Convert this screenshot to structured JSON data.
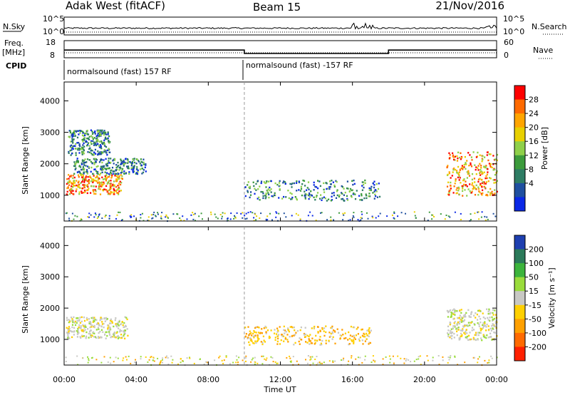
{
  "header": {
    "station": "Adak West (fitACF)",
    "beam": "Beam 15",
    "date": "21/Nov/2016"
  },
  "panels": {
    "nsky": {
      "left_label": "N.Sky",
      "left_ticks": [
        "10^5",
        "10^0"
      ],
      "right_label": "N.Search",
      "right_ticks": [
        "10^5",
        "10^0"
      ]
    },
    "freq": {
      "left_label_1": "Freq.",
      "left_label_2": "[MHz]",
      "left_ticks": [
        "18",
        "8"
      ],
      "right_label": "Nave",
      "right_ticks": [
        "60",
        "0"
      ]
    },
    "cpid": {
      "label": "CPID",
      "segments": [
        {
          "text": "normalsound (fast) 157 RF",
          "start_hour": 0
        },
        {
          "text": "normalsound (fast) -157 RF",
          "start_hour": 10
        }
      ]
    },
    "power": {
      "ylabel": "Slant Range [km]",
      "colorbar_label": "Power [dB]",
      "colorbar_ticks": [
        "28",
        "24",
        "20",
        "16",
        "12",
        "8",
        "4"
      ],
      "colorbar_colors": [
        "#ff0000",
        "#ff6a00",
        "#ffa500",
        "#e8d000",
        "#8fd04a",
        "#3c9b3c",
        "#2e7d64",
        "#1f4fa0",
        "#0a28e6"
      ]
    },
    "velocity": {
      "ylabel": "Slant Range [km]",
      "colorbar_label": "Velocity [m s⁻¹]",
      "colorbar_ticks": [
        "200",
        "100",
        "50",
        "15",
        "-15",
        "-50",
        "-100",
        "-200"
      ],
      "colorbar_colors": [
        "#1e3fb0",
        "#2b7a5a",
        "#3cb43c",
        "#9adc3c",
        "#c8c8c4",
        "#ffd000",
        "#ffa000",
        "#ff6a00",
        "#ff2000"
      ]
    }
  },
  "xaxis": {
    "label": "Time UT",
    "ticks": [
      "00:00",
      "04:00",
      "08:00",
      "12:00",
      "16:00",
      "20:00",
      "00:00"
    ]
  },
  "chart_data": {
    "type": "heatmap",
    "title": "Adak West (fitACF)  Beam 15  21/Nov/2016",
    "xlabel": "Time UT",
    "ylabel": "Slant Range [km]",
    "x_range_hours": [
      0,
      24
    ],
    "y_range_km": [
      180,
      4600
    ],
    "y_ticks_km": [
      1000,
      2000,
      3000,
      4000
    ],
    "freq_mhz_by_period": [
      {
        "start_hour": 0,
        "end_hour": 10,
        "freq": 12.5
      },
      {
        "start_hour": 10,
        "end_hour": 18,
        "freq": 10.5
      },
      {
        "start_hour": 18,
        "end_hour": 24,
        "freq": 12.5
      }
    ],
    "echo_regions": [
      {
        "panel": "power",
        "t0": 0.1,
        "t1": 3.2,
        "r0": 1050,
        "r1": 1700,
        "level": "high"
      },
      {
        "panel": "power",
        "t0": 0.5,
        "t1": 4.5,
        "r0": 1700,
        "r1": 2200,
        "level": "low"
      },
      {
        "panel": "power",
        "t0": 0.2,
        "t1": 2.5,
        "r0": 2300,
        "r1": 3100,
        "level": "low"
      },
      {
        "panel": "power",
        "t0": 10.0,
        "t1": 17.5,
        "r0": 850,
        "r1": 1500,
        "level": "low"
      },
      {
        "panel": "power",
        "t0": 21.2,
        "t1": 24.0,
        "r0": 1000,
        "r1": 2400,
        "level": "high"
      },
      {
        "panel": "velocity",
        "t0": 0.1,
        "t1": 3.5,
        "r0": 1050,
        "r1": 1750,
        "level": "near-zero"
      },
      {
        "panel": "velocity",
        "t0": 10.0,
        "t1": 17.0,
        "r0": 850,
        "r1": 1450,
        "level": "negative"
      },
      {
        "panel": "velocity",
        "t0": 21.2,
        "t1": 24.0,
        "r0": 1000,
        "r1": 2000,
        "level": "near-zero"
      }
    ]
  }
}
